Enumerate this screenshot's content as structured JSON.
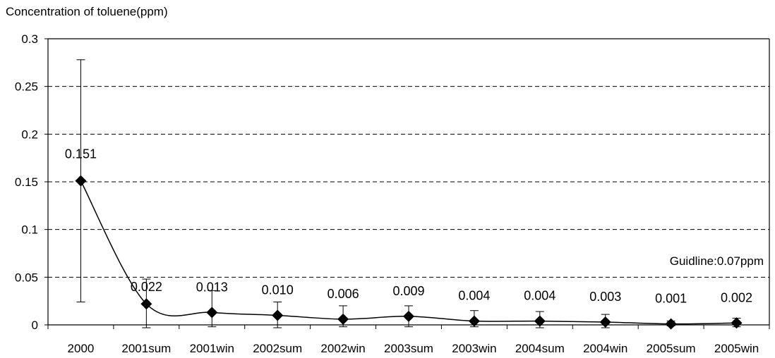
{
  "chart_data": {
    "type": "line",
    "ylabel": "Concentration of toluene(ppm)",
    "categories": [
      "2000",
      "2001sum",
      "2001win",
      "2002sum",
      "2002win",
      "2003sum",
      "2003win",
      "2004sum",
      "2004win",
      "2005sum",
      "2005win"
    ],
    "values": [
      0.151,
      0.022,
      0.013,
      0.01,
      0.006,
      0.009,
      0.004,
      0.004,
      0.003,
      0.001,
      0.002
    ],
    "value_labels": [
      "0.151",
      "0.022",
      "0.013",
      "0.010",
      "0.006",
      "0.009",
      "0.004",
      "0.004",
      "0.003",
      "0.001",
      "0.002"
    ],
    "error_upper": [
      0.278,
      0.048,
      0.036,
      0.024,
      0.02,
      0.02,
      0.015,
      0.014,
      0.011,
      0.004,
      0.007
    ],
    "error_lower": [
      0.024,
      -0.003,
      -0.002,
      -0.003,
      -0.002,
      -0.002,
      -0.002,
      -0.003,
      -0.003,
      -0.001,
      -0.002
    ],
    "yticks": [
      "0",
      "0.05",
      "0.1",
      "0.15",
      "0.2",
      "0.25",
      "0.3"
    ],
    "ylim": [
      0,
      0.3
    ],
    "grid": "horizontal dashed",
    "guideline": {
      "label": "Guidline:0.07ppm"
    },
    "colors": {
      "line": "#000000",
      "marker": "#000000",
      "grid": "#000000"
    }
  }
}
